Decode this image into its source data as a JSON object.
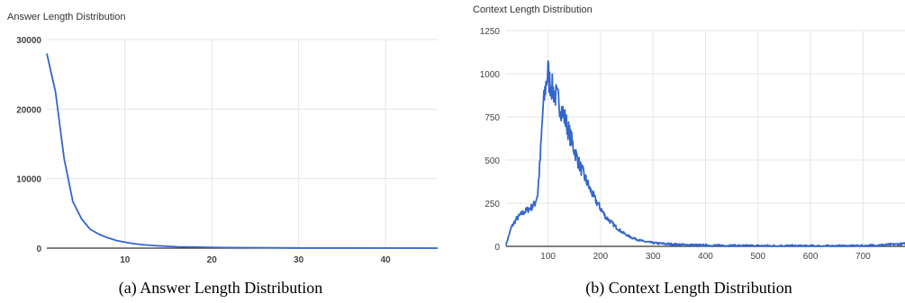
{
  "chart_data": [
    {
      "type": "line",
      "title": "Answer Length Distribution",
      "caption": "(a) Answer Length Distribution",
      "xlabel": "",
      "ylabel": "",
      "xlim": [
        1,
        46
      ],
      "ylim": [
        0,
        30000
      ],
      "x_ticks": [
        10,
        20,
        30,
        40
      ],
      "y_ticks": [
        0,
        10000,
        20000,
        30000
      ],
      "grid": true,
      "color": "#3366cc",
      "series": [
        {
          "x": [
            1,
            2,
            3,
            4,
            5,
            6,
            7,
            8,
            9,
            10,
            11,
            12,
            13,
            14,
            15,
            16,
            18,
            20,
            22,
            25,
            28,
            30,
            35,
            40,
            46
          ],
          "y": [
            28000,
            22500,
            12800,
            6700,
            4200,
            2700,
            2000,
            1500,
            1100,
            850,
            650,
            500,
            400,
            320,
            260,
            200,
            150,
            110,
            80,
            60,
            40,
            30,
            20,
            10,
            5
          ]
        }
      ]
    },
    {
      "type": "line",
      "title": "Context Length Distribution",
      "caption": "(b) Context Length Distribution",
      "xlabel": "",
      "ylabel": "",
      "xlim": [
        20,
        780
      ],
      "ylim": [
        0,
        1250
      ],
      "x_ticks": [
        100,
        200,
        300,
        400,
        500,
        600,
        700
      ],
      "y_ticks": [
        0,
        250,
        500,
        750,
        1000,
        1250
      ],
      "grid": true,
      "color": "#3366cc",
      "series": [
        {
          "x": [
            20,
            25,
            30,
            40,
            50,
            60,
            70,
            75,
            80,
            85,
            90,
            95,
            98,
            100,
            102,
            105,
            110,
            120,
            130,
            140,
            150,
            160,
            170,
            180,
            190,
            200,
            210,
            220,
            230,
            240,
            250,
            260,
            270,
            280,
            290,
            300,
            320,
            340,
            360,
            380,
            400,
            450,
            500,
            550,
            600,
            650,
            700,
            750,
            780
          ],
          "y": [
            10,
            60,
            110,
            160,
            190,
            210,
            230,
            250,
            300,
            500,
            780,
            920,
            980,
            1020,
            960,
            940,
            900,
            840,
            760,
            660,
            560,
            470,
            400,
            330,
            270,
            220,
            170,
            140,
            110,
            85,
            65,
            50,
            40,
            30,
            25,
            20,
            15,
            12,
            9,
            7,
            6,
            4,
            3,
            3,
            2,
            2,
            3,
            10,
            15
          ]
        }
      ]
    }
  ]
}
